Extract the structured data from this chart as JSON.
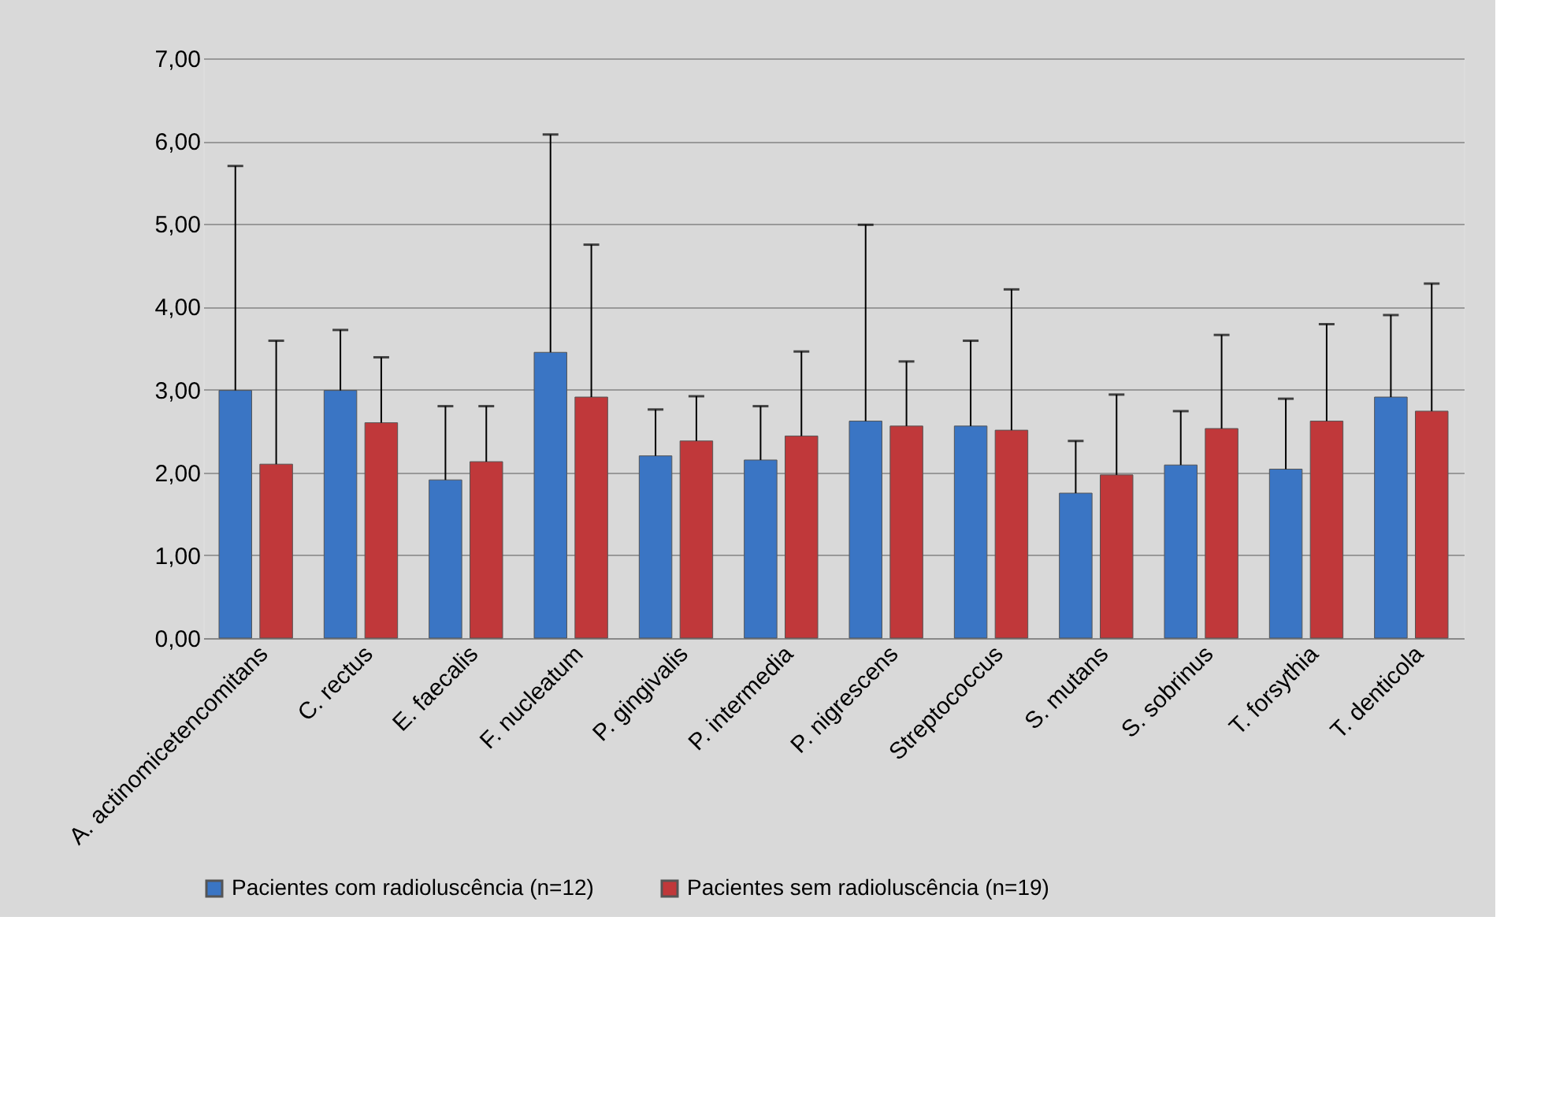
{
  "chart_data": {
    "type": "bar",
    "categories": [
      "A. actinomicetencomitans",
      "C. rectus",
      "E. faecalis",
      "F. nucleatum",
      "P. gingivalis",
      "P. intermedia",
      "P. nigrescens",
      "Streptococcus",
      "S. mutans",
      "S. sobrinus",
      "T. forsythia",
      "T. denticola"
    ],
    "series": [
      {
        "name": "Pacientes com radioluscência (n=12)",
        "color": "#3a75c4",
        "values": [
          2.99,
          2.99,
          1.91,
          3.45,
          2.2,
          2.15,
          2.62,
          2.56,
          1.75,
          2.09,
          2.04,
          2.91
        ],
        "errors": [
          [
            2.99,
            5.7
          ],
          [
            2.99,
            3.72
          ],
          [
            1.91,
            2.8
          ],
          [
            3.45,
            6.08
          ],
          [
            2.2,
            2.76
          ],
          [
            2.15,
            2.8
          ],
          [
            2.62,
            4.99
          ],
          [
            2.56,
            3.59
          ],
          [
            1.75,
            2.38
          ],
          [
            2.09,
            2.74
          ],
          [
            2.04,
            2.89
          ],
          [
            2.91,
            3.9
          ]
        ]
      },
      {
        "name": "Pacientes sem radioluscência (n=19)",
        "color": "#c0383a",
        "values": [
          2.1,
          2.6,
          2.13,
          2.91,
          2.38,
          2.44,
          2.56,
          2.51,
          1.97,
          2.53,
          2.62,
          2.74
        ],
        "errors": [
          [
            2.1,
            3.59
          ],
          [
            2.6,
            3.39
          ],
          [
            2.13,
            2.8
          ],
          [
            2.91,
            4.75
          ],
          [
            2.38,
            2.92
          ],
          [
            2.44,
            3.46
          ],
          [
            2.56,
            3.34
          ],
          [
            2.51,
            4.21
          ],
          [
            1.97,
            2.94
          ],
          [
            2.53,
            3.66
          ],
          [
            2.62,
            3.79
          ],
          [
            2.74,
            4.28
          ]
        ]
      }
    ],
    "ylim": [
      0,
      7
    ],
    "yticks": [
      {
        "value": 0,
        "label": "0,00"
      },
      {
        "value": 1,
        "label": "1,00"
      },
      {
        "value": 2,
        "label": "2,00"
      },
      {
        "value": 3,
        "label": "3,00"
      },
      {
        "value": 4,
        "label": "4,00"
      },
      {
        "value": 5,
        "label": "5,00"
      },
      {
        "value": 6,
        "label": "6,00"
      },
      {
        "value": 7,
        "label": "7,00"
      }
    ],
    "grid": "y",
    "legend": "bottom"
  }
}
